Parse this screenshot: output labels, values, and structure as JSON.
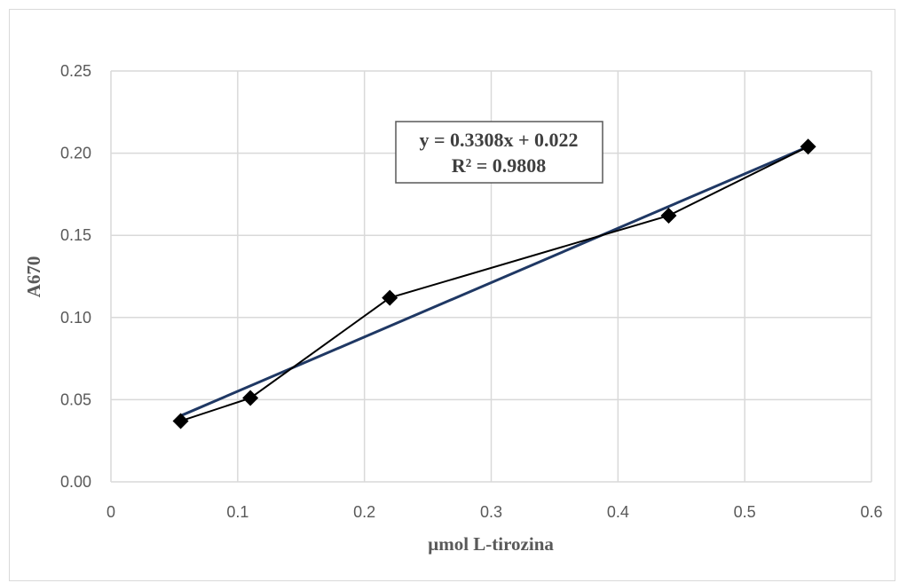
{
  "chart_data": {
    "type": "scatter",
    "title": "",
    "xlabel": "µmol L-tirozina",
    "ylabel": "A670",
    "xlim": [
      0,
      0.6
    ],
    "ylim": [
      0,
      0.25
    ],
    "x_ticks": [
      "0",
      "0.1",
      "0.2",
      "0.3",
      "0.4",
      "0.5",
      "0.6"
    ],
    "y_ticks": [
      "0.00",
      "0.05",
      "0.10",
      "0.15",
      "0.20",
      "0.25"
    ],
    "grid": true,
    "series": [
      {
        "x": [
          0.055,
          0.11,
          0.22,
          0.44,
          0.55
        ],
        "y": [
          0.037,
          0.051,
          0.112,
          0.162,
          0.204
        ],
        "marker": "diamond",
        "color": "#000000",
        "connected": true
      }
    ],
    "trendline": {
      "type": "linear",
      "slope": 0.3308,
      "intercept": 0.022,
      "color": "#1f3864",
      "equation": "y = 0.3308x + 0.022",
      "r_squared": "R² = 0.9808"
    }
  }
}
